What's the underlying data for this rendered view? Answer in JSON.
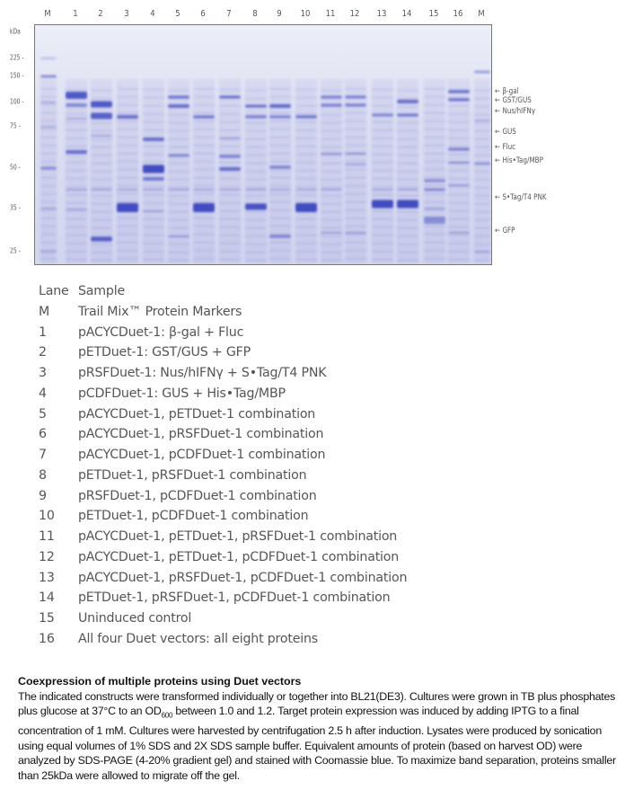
{
  "gel": {
    "lane_labels": [
      "M",
      "1",
      "2",
      "3",
      "4",
      "5",
      "6",
      "7",
      "8",
      "9",
      "10",
      "11",
      "12",
      "13",
      "14",
      "15",
      "16",
      "M"
    ],
    "unit_label": "kDa",
    "marker_sizes": [
      "225",
      "150",
      "100",
      "75",
      "50",
      "35",
      "25"
    ],
    "band_labels": [
      "β-gal",
      "GST/GUS",
      "Nus/hIFNγ",
      "GUS",
      "Fluc",
      "His•Tag/MBP",
      "S•Tag/T4 PNK",
      "GFP"
    ],
    "stain_color": "#3a45c0",
    "background_color": "#dfe1f2"
  },
  "legend": {
    "header": {
      "lane": "Lane",
      "sample": "Sample"
    },
    "rows": [
      {
        "lane": "M",
        "sample": "Trail Mix™ Protein Markers"
      },
      {
        "lane": "1",
        "sample": "pACYCDuet-1: β-gal + Fluc"
      },
      {
        "lane": "2",
        "sample": "pETDuet-1: GST/GUS + GFP"
      },
      {
        "lane": "3",
        "sample": "pRSFDuet-1: Nus/hIFNγ + S•Tag/T4 PNK"
      },
      {
        "lane": "4",
        "sample": "pCDFDuet-1: GUS + His•Tag/MBP"
      },
      {
        "lane": "5",
        "sample": "pACYCDuet-1, pETDuet-1 combination"
      },
      {
        "lane": "6",
        "sample": "pACYCDuet-1, pRSFDuet-1 combination"
      },
      {
        "lane": "7",
        "sample": "pACYCDuet-1, pCDFDuet-1 combination"
      },
      {
        "lane": "8",
        "sample": "pETDuet-1, pRSFDuet-1 combination"
      },
      {
        "lane": "9",
        "sample": "pRSFDuet-1, pCDFDuet-1 combination"
      },
      {
        "lane": "10",
        "sample": "pETDuet-1, pCDFDuet-1 combination"
      },
      {
        "lane": "11",
        "sample": "pACYCDuet-1, pETDuet-1, pRSFDuet-1 combination"
      },
      {
        "lane": "12",
        "sample": "pACYCDuet-1, pETDuet-1, pCDFDuet-1 combination"
      },
      {
        "lane": "13",
        "sample": "pACYCDuet-1, pRSFDuet-1, pCDFDuet-1 combination"
      },
      {
        "lane": "14",
        "sample": "pETDuet-1, pRSFDuet-1, pCDFDuet-1 combination"
      },
      {
        "lane": "15",
        "sample": "Uninduced control"
      },
      {
        "lane": "16",
        "sample": "All four Duet vectors: all eight proteins"
      }
    ]
  },
  "caption": {
    "title": "Coexpression of multiple proteins using Duet vectors",
    "body_1": "The indicated constructs were transformed individually or together into BL21(DE3). Cultures were grown in TB plus phosphates plus glucose at 37°C to an OD",
    "od_subscript": "600",
    "body_2": " between 1.0 and 1.2. Target protein expression was induced by adding IPTG to a final concentration of 1 mM. Cultures were harvested by centrifugation 2.5 h after induction. Lysates were produced by sonication using equal volumes of 1% SDS and 2X SDS sample buffer. Equivalent amounts of protein (based on harvest OD) were analyzed by SDS-PAGE (4-20% gradient gel) and stained with Coomassie blue. To maximize band separation, proteins smaller than 25kDa were allowed to migrate off the gel."
  }
}
